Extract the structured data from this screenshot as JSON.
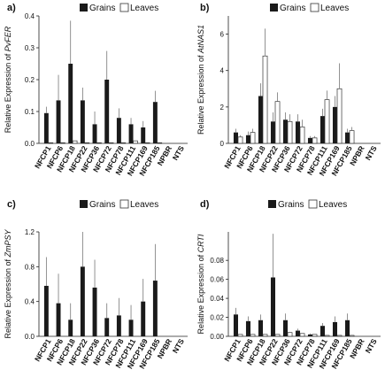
{
  "chart_data": [
    {
      "panel": "a)",
      "type": "bar",
      "ylabel_prefix": "Relative Expression of ",
      "ylabel_gene": "PvFER",
      "categories": [
        "NFCP1",
        "NFCP6",
        "NFCP18",
        "NFCP22",
        "NFCP36",
        "NFCP72",
        "NFCP78",
        "NFCP111",
        "NFCP169",
        "NFCP185",
        "NPBR",
        "NTS"
      ],
      "ylim": [
        0,
        0.4
      ],
      "yticks": [
        0,
        0.1,
        0.2,
        0.3,
        0.4
      ],
      "ytick_labels": [
        "0.0",
        "0.1",
        "0.2",
        "0.3",
        "0.4"
      ],
      "legend": [
        "Grains",
        "Leaves"
      ],
      "series": [
        {
          "name": "Grains",
          "values": [
            0.095,
            0.135,
            0.25,
            0.135,
            0.06,
            0.2,
            0.08,
            0.06,
            0.05,
            0.13,
            0,
            0
          ],
          "errors": [
            0.02,
            0.08,
            0.135,
            0.04,
            0.04,
            0.09,
            0.03,
            0.02,
            0.02,
            0.035,
            0,
            0
          ]
        },
        {
          "name": "Leaves",
          "values": [
            0.002,
            0.002,
            0.008,
            0.002,
            0.002,
            0.002,
            0.002,
            0.008,
            0.002,
            0.002,
            0,
            0
          ],
          "errors": [
            0,
            0,
            0,
            0,
            0,
            0,
            0,
            0,
            0,
            0,
            0,
            0
          ]
        }
      ]
    },
    {
      "panel": "b)",
      "type": "bar",
      "ylabel_prefix": "Relative Expression of ",
      "ylabel_gene": "AtNAS1",
      "categories": [
        "NFCP1",
        "NFCP6",
        "NFCP18",
        "NFCP22",
        "NFCP36",
        "NFCP72",
        "NFCP78",
        "NFCP111",
        "NFCP169",
        "NFCP185",
        "NPBR",
        "NTS"
      ],
      "ylim": [
        0,
        7
      ],
      "yticks": [
        0,
        2,
        4,
        6
      ],
      "ytick_labels": [
        "0",
        "2",
        "4",
        "6"
      ],
      "legend": [
        "Grains",
        "Leaves"
      ],
      "series": [
        {
          "name": "Grains",
          "values": [
            0.6,
            0.45,
            2.6,
            1.2,
            1.3,
            1.2,
            0.3,
            1.5,
            2.0,
            0.6,
            0,
            0
          ],
          "errors": [
            0.2,
            0.2,
            0.7,
            0.5,
            0.4,
            0.4,
            0.1,
            0.4,
            0.6,
            0.2,
            0,
            0
          ]
        },
        {
          "name": "Leaves",
          "values": [
            0.35,
            0.6,
            4.8,
            2.3,
            1.2,
            0.9,
            0.3,
            2.4,
            3.0,
            0.7,
            0,
            0
          ],
          "errors": [
            0.1,
            0.2,
            1.5,
            0.5,
            0.4,
            0.4,
            0.1,
            0.5,
            1.4,
            0.2,
            0,
            0
          ]
        }
      ]
    },
    {
      "panel": "c)",
      "type": "bar",
      "ylabel_prefix": "Relative Expression of ",
      "ylabel_gene": "ZmPSY",
      "categories": [
        "NFCP1",
        "NFCP6",
        "NFCP18",
        "NFCP22",
        "NFCP36",
        "NFCP72",
        "NFCP78",
        "NFCP111",
        "NFCP169",
        "NFCP185",
        "NPBR",
        "NTS"
      ],
      "ylim": [
        0,
        1.2
      ],
      "yticks": [
        0,
        0.4,
        0.8,
        1.2
      ],
      "ytick_labels": [
        "0.0",
        "0.4",
        "0.8",
        "1.2"
      ],
      "legend": [
        "Grains",
        "Leaves"
      ],
      "series": [
        {
          "name": "Grains",
          "values": [
            0.58,
            0.38,
            0.19,
            0.8,
            0.56,
            0.21,
            0.24,
            0.19,
            0.4,
            0.64,
            0,
            0
          ],
          "errors": [
            0.33,
            0.34,
            0.19,
            0.4,
            0.32,
            0.17,
            0.2,
            0.17,
            0.26,
            0.42,
            0,
            0
          ]
        },
        {
          "name": "Leaves",
          "values": [
            0,
            0,
            0,
            0,
            0,
            0,
            0,
            0,
            0,
            0,
            0,
            0
          ],
          "errors": [
            0,
            0,
            0,
            0,
            0,
            0,
            0,
            0,
            0,
            0,
            0,
            0
          ]
        }
      ]
    },
    {
      "panel": "d)",
      "type": "bar",
      "ylabel_prefix": "Relative Expression of ",
      "ylabel_gene": "CRTI",
      "categories": [
        "NFCP1",
        "NFCP6",
        "NFCP18",
        "NFCP22",
        "NFCP36",
        "NFCP72",
        "NFCP78",
        "NFCP111",
        "NFCP169",
        "NFCP185",
        "NPBR",
        "NTS"
      ],
      "ylim": [
        0,
        0.11
      ],
      "yticks": [
        0,
        0.02,
        0.04,
        0.06,
        0.08
      ],
      "ytick_labels": [
        "0.00",
        "0.02",
        "0.04",
        "0.06",
        "0.08"
      ],
      "legend": [
        "Grains",
        "Leaves"
      ],
      "series": [
        {
          "name": "Grains",
          "values": [
            0.023,
            0.016,
            0.017,
            0.062,
            0.017,
            0.006,
            0.002,
            0.011,
            0.015,
            0.017,
            0,
            0
          ],
          "errors": [
            0.007,
            0.005,
            0.006,
            0.046,
            0.007,
            0.002,
            0.001,
            0.003,
            0.006,
            0.007,
            0,
            0
          ]
        },
        {
          "name": "Leaves",
          "values": [
            0.002,
            0.002,
            0.002,
            0.002,
            0.004,
            0.003,
            0.002,
            0.001,
            0.001,
            0.001,
            0,
            0
          ],
          "errors": [
            0,
            0,
            0,
            0,
            0,
            0,
            0,
            0,
            0,
            0,
            0,
            0
          ]
        }
      ]
    }
  ],
  "colors": {
    "grains": "#1a1a1a",
    "leaves": "#ffffff",
    "leaves_stroke": "#333333",
    "error_bar": "#777777"
  }
}
